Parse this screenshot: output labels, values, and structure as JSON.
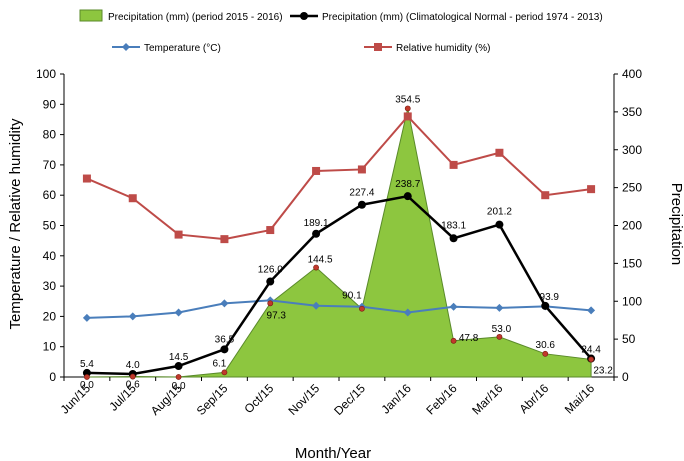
{
  "chart_data": {
    "type": "line",
    "categories": [
      "Jun/15",
      "Jul/15",
      "Aug/15",
      "Sep/15",
      "Oct/15",
      "Nov/15",
      "Dec/15",
      "Jan/16",
      "Feb/16",
      "Mar/16",
      "Abr/16",
      "Mai/16"
    ],
    "xlabel": "Month/Year",
    "ylabel_left": "Temperature  / Relative humidity",
    "ylabel_right": "Precipitation",
    "ylim_left": [
      0,
      100
    ],
    "ylim_right": [
      0,
      400
    ],
    "left_ticks": [
      "0",
      "10",
      "20",
      "30",
      "40",
      "50",
      "60",
      "70",
      "80",
      "90",
      "100"
    ],
    "right_ticks": [
      "0",
      "50",
      "100",
      "150",
      "200",
      "250",
      "300",
      "350",
      "400"
    ],
    "series": [
      {
        "name": "Precipitation (mm) (period 2015 - 2016)",
        "type": "area",
        "axis": "right",
        "color": "#8dc63f",
        "values": [
          0.0,
          0.6,
          0.0,
          6.1,
          97.3,
          144.5,
          90.1,
          354.5,
          47.8,
          53.0,
          30.6,
          23.2
        ],
        "labels": [
          "0.0",
          "0.6",
          "0.0",
          "6.1",
          "97.3",
          "144.5",
          "90.1",
          "354.5",
          "47.8",
          "53.0",
          "30.6",
          "23.2"
        ]
      },
      {
        "name": "Precipitation (mm) (Climatological Normal - period 1974 - 2013)",
        "type": "line",
        "axis": "right",
        "color": "#000000",
        "values": [
          5.4,
          4.0,
          14.5,
          36.5,
          126.0,
          189.1,
          227.4,
          238.7,
          183.1,
          201.2,
          93.9,
          24.4
        ],
        "labels": [
          "5.4",
          "4.0",
          "14.5",
          "36.5",
          "126.0",
          "189.1",
          "227.4",
          "238.7",
          "183.1",
          "201.2",
          "93.9",
          "24.4"
        ]
      },
      {
        "name": "Temperature (°C)",
        "type": "line",
        "axis": "left",
        "color": "#4a7ebb",
        "values": [
          19.5,
          20.0,
          21.3,
          24.3,
          25.3,
          23.5,
          23.2,
          21.3,
          23.2,
          22.8,
          23.3,
          22.0
        ]
      },
      {
        "name": "Relative humidity (%)",
        "type": "line",
        "axis": "left",
        "color": "#be4b48",
        "values": [
          65.5,
          59.0,
          47.0,
          45.5,
          48.5,
          68.0,
          68.5,
          86.0,
          70.0,
          74.0,
          60.0,
          62.0
        ]
      }
    ]
  }
}
